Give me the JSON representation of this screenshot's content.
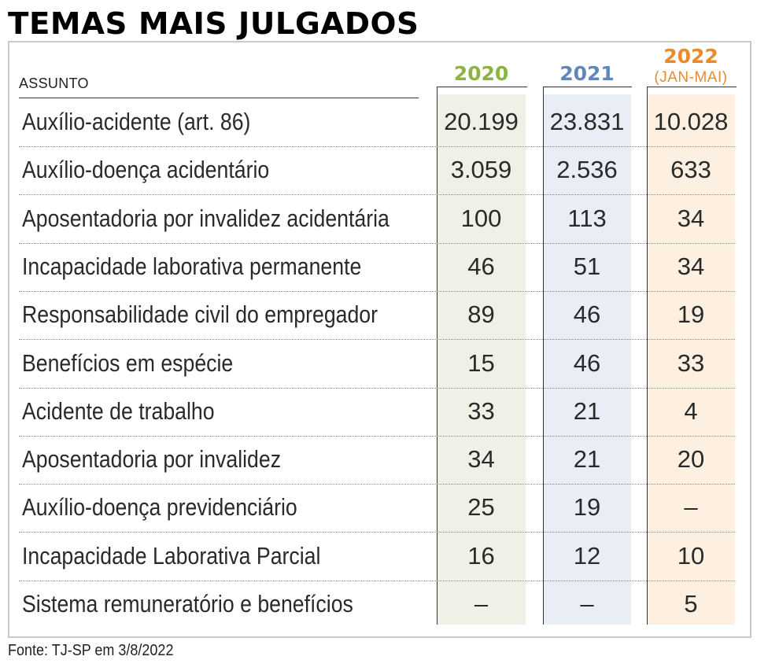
{
  "title": "TEMAS MAIS JULGADOS",
  "source": "Fonte: TJ-SP em 3/8/2022",
  "colors": {
    "y2020": "#8db43e",
    "y2021": "#5f88b8",
    "y2022": "#e98a2c"
  },
  "chart_data": {
    "type": "table",
    "title": "TEMAS MAIS JULGADOS",
    "row_header": "ASSUNTO",
    "columns": [
      {
        "label": "2020",
        "sublabel": ""
      },
      {
        "label": "2021",
        "sublabel": ""
      },
      {
        "label": "2022",
        "sublabel": "(JAN-MAI)"
      }
    ],
    "rows": [
      {
        "label": "Auxílio-acidente (art. 86)",
        "values": [
          "20.199",
          "23.831",
          "10.028"
        ]
      },
      {
        "label": "Auxílio-doença acidentário",
        "values": [
          "3.059",
          "2.536",
          "633"
        ]
      },
      {
        "label": "Aposentadoria por invalidez acidentária",
        "values": [
          "100",
          "113",
          "34"
        ]
      },
      {
        "label": "Incapacidade laborativa permanente",
        "values": [
          "46",
          "51",
          "34"
        ]
      },
      {
        "label": "Responsabilidade civil do empregador",
        "values": [
          "89",
          "46",
          "19"
        ]
      },
      {
        "label": "Benefícios em espécie",
        "values": [
          "15",
          "46",
          "33"
        ]
      },
      {
        "label": "Acidente de trabalho",
        "values": [
          "33",
          "21",
          "4"
        ]
      },
      {
        "label": "Aposentadoria por invalidez",
        "values": [
          "34",
          "21",
          "20"
        ]
      },
      {
        "label": "Auxílio-doença previdenciário",
        "values": [
          "25",
          "19",
          "–"
        ]
      },
      {
        "label": "Incapacidade Laborativa Parcial",
        "values": [
          "16",
          "12",
          "10"
        ]
      },
      {
        "label": "Sistema remuneratório e benefícios",
        "values": [
          "–",
          "–",
          "5"
        ]
      }
    ]
  }
}
